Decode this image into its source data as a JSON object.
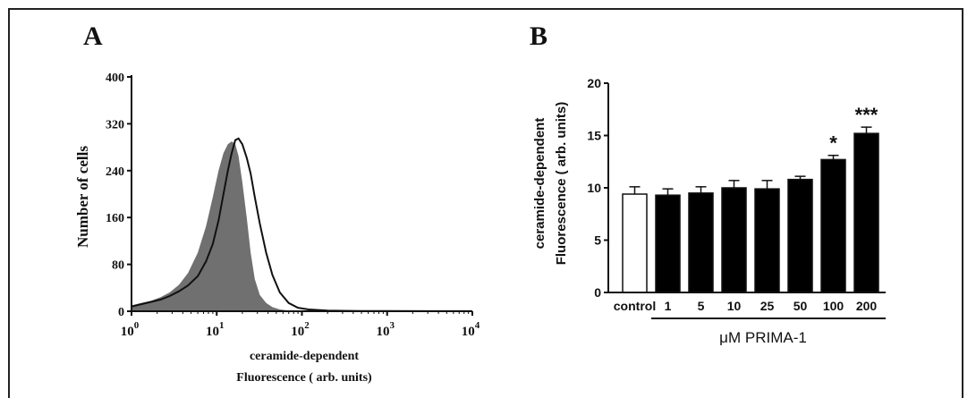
{
  "panels": {
    "a_label": "A",
    "b_label": "B"
  },
  "chart_data": [
    {
      "type": "area",
      "panel": "A",
      "xlabel_line1": "ceramide-dependent",
      "xlabel_line2": "Fluorescence ( arb. units)",
      "ylabel": "Number of cells",
      "x_scale": "log",
      "xlim": [
        1,
        10000
      ],
      "ylim": [
        0,
        400
      ],
      "y_ticks": [
        "0",
        "80",
        "160",
        "240",
        "320",
        "400"
      ],
      "x_ticks": [
        {
          "base": "10",
          "exp": "0"
        },
        {
          "base": "10",
          "exp": "1"
        },
        {
          "base": "10",
          "exp": "2"
        },
        {
          "base": "10",
          "exp": "3"
        },
        {
          "base": "10",
          "exp": "4"
        }
      ],
      "series": [
        {
          "style": "filled-gray",
          "color": "#707070",
          "x": [
            1,
            1.3,
            1.7,
            2.2,
            2.8,
            3.6,
            4.6,
            6,
            7.5,
            9,
            10.5,
            12,
            13.5,
            15,
            16.5,
            18,
            20,
            22.5,
            25,
            28,
            32,
            38,
            45,
            55,
            70,
            100
          ],
          "y": [
            10,
            14,
            18,
            24,
            32,
            45,
            65,
            100,
            145,
            195,
            240,
            270,
            285,
            290,
            285,
            265,
            220,
            160,
            100,
            55,
            28,
            14,
            7,
            3,
            1,
            0
          ]
        },
        {
          "style": "outline-black",
          "color": "#111111",
          "x": [
            1,
            1.3,
            1.7,
            2.2,
            2.8,
            3.6,
            4.6,
            6,
            7.5,
            9,
            10.5,
            12,
            13.5,
            15,
            16.5,
            18,
            20,
            22.5,
            25,
            28,
            32,
            38,
            45,
            55,
            70,
            90,
            120,
            200,
            500,
            1000,
            3000,
            10000
          ],
          "y": [
            8,
            12,
            16,
            20,
            26,
            34,
            44,
            60,
            85,
            115,
            155,
            200,
            240,
            270,
            292,
            295,
            285,
            262,
            235,
            195,
            150,
            100,
            62,
            32,
            14,
            6,
            3,
            1,
            0.5,
            0.3,
            0.2,
            0.2
          ]
        }
      ]
    },
    {
      "type": "bar",
      "panel": "B",
      "ylabel_line1": "ceramide-dependent",
      "ylabel_line2": "Fluorescence ( arb. units)",
      "xlabel": "μM PRIMA-1",
      "ylim": [
        0,
        20
      ],
      "y_ticks": [
        "0",
        "5",
        "10",
        "15",
        "20"
      ],
      "categories": [
        "control",
        "1",
        "5",
        "10",
        "25",
        "50",
        "100",
        "200"
      ],
      "values": [
        9.4,
        9.3,
        9.5,
        10.0,
        9.9,
        10.8,
        12.7,
        15.2
      ],
      "errors": [
        0.7,
        0.6,
        0.6,
        0.7,
        0.8,
        0.3,
        0.4,
        0.6
      ],
      "fills": [
        "#ffffff",
        "#000000",
        "#000000",
        "#000000",
        "#000000",
        "#000000",
        "#000000",
        "#000000"
      ],
      "significance": [
        "",
        "",
        "",
        "",
        "",
        "",
        "*",
        "***"
      ]
    }
  ]
}
